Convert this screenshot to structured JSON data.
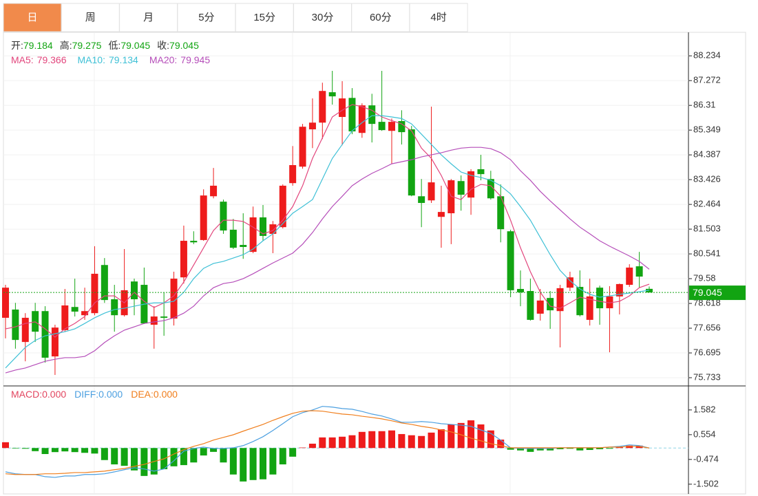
{
  "tabs": [
    "日",
    "周",
    "月",
    "5分",
    "15分",
    "30分",
    "60分",
    "4时"
  ],
  "active_tab": 0,
  "chart_data": [
    {
      "type": "candlestick",
      "labels": {
        "open": "开:",
        "high": "高:",
        "low": "低:",
        "close": "收:"
      },
      "up_color": "#ee1c1c",
      "down_color": "#12a412",
      "open": [
        78.06,
        78.38,
        77.12,
        78.32,
        78.32,
        76.56,
        77.58,
        78.48,
        78.16,
        78.24,
        80.11,
        78.78,
        78.16,
        79.47,
        79.34,
        77.79,
        78.11,
        78.03,
        79.63,
        81.05,
        81.08,
        82.78,
        82.57,
        81.48,
        80.89,
        80.62,
        81.96,
        81.32,
        81.58,
        83.29,
        83.93,
        85.38,
        85.64,
        86.82,
        85.86,
        86.6,
        85.24,
        86.31,
        85.67,
        85.32,
        85.7,
        85.38,
        82.78,
        82.62,
        81.98,
        82.12,
        83.37,
        82.73,
        83.83,
        83.45,
        82.78,
        81.42,
        79.18,
        79.1,
        78.22,
        78.83,
        78.32,
        79.23,
        79.26,
        77.98,
        79.23,
        78.43,
        78.89,
        79.34,
        80.06,
        79.184
      ],
      "high": [
        79.34,
        78.64,
        78.24,
        78.64,
        78.51,
        77.79,
        79.18,
        79.58,
        79.23,
        80.84,
        80.38,
        79.34,
        80.73,
        79.58,
        80.01,
        78.51,
        79.05,
        79.85,
        81.64,
        81.42,
        83.05,
        83.88,
        82.65,
        81.9,
        82.12,
        82.38,
        82.44,
        81.82,
        83.24,
        84.73,
        85.59,
        86.58,
        87.19,
        87.65,
        87.25,
        86.98,
        86.39,
        86.76,
        87.65,
        85.8,
        86.12,
        85.51,
        83.45,
        86.26,
        83.19,
        83.45,
        83.59,
        83.83,
        84.39,
        83.77,
        83.24,
        81.48,
        79.9,
        79.58,
        79.18,
        79.1,
        79.34,
        79.85,
        79.9,
        79.58,
        79.31,
        79.29,
        79.39,
        80.14,
        80.62,
        79.275
      ],
      "low": [
        77.26,
        76.86,
        76.37,
        77.12,
        76.32,
        75.84,
        77.52,
        78.11,
        77.98,
        78.16,
        78.64,
        77.52,
        78.11,
        78.16,
        77.82,
        76.86,
        77.36,
        77.76,
        79.39,
        80.92,
        81.05,
        82.7,
        81.32,
        80.73,
        80.35,
        80.57,
        81.05,
        80.57,
        81.53,
        83.19,
        83.85,
        84.65,
        85.0,
        86.34,
        84.76,
        85.19,
        85.05,
        84.87,
        85.32,
        84.04,
        84.79,
        82.78,
        81.58,
        82.52,
        80.78,
        80.92,
        82.22,
        82.06,
        83.4,
        82.65,
        80.99,
        78.86,
        78.51,
        77.95,
        77.95,
        77.63,
        76.91,
        79.1,
        78.11,
        77.76,
        77.79,
        76.72,
        78.19,
        79.26,
        79.23,
        79.045
      ],
      "close": [
        79.23,
        77.2,
        78.06,
        77.52,
        76.51,
        77.68,
        78.54,
        78.3,
        78.32,
        79.77,
        78.75,
        78.16,
        79.13,
        78.78,
        77.84,
        78.11,
        78.06,
        79.58,
        81.05,
        80.99,
        82.81,
        83.19,
        81.45,
        80.78,
        80.81,
        81.96,
        81.24,
        81.69,
        83.19,
        83.99,
        85.48,
        85.64,
        86.87,
        86.66,
        86.58,
        85.3,
        86.31,
        85.59,
        85.35,
        85.67,
        85.27,
        82.81,
        82.52,
        83.32,
        82.17,
        83.4,
        82.84,
        83.75,
        83.64,
        82.7,
        81.5,
        79.13,
        79.05,
        77.98,
        78.73,
        78.35,
        79.21,
        79.63,
        78.16,
        78.89,
        78.43,
        78.89,
        79.37,
        80.01,
        79.66,
        79.045
      ],
      "series": [
        {
          "name": "MA5:",
          "color": "#e2457c",
          "values": [
            77.63,
            77.71,
            77.84,
            77.9,
            77.63,
            77.31,
            77.63,
            77.84,
            78.11,
            78.64,
            78.91,
            78.91,
            78.64,
            79.05,
            78.7,
            78.46,
            78.64,
            78.91,
            79.45,
            80.11,
            80.78,
            81.45,
            81.85,
            81.85,
            81.8,
            81.58,
            81.32,
            81.45,
            81.85,
            82.38,
            83.19,
            84.25,
            85.05,
            85.86,
            86.12,
            86.34,
            86.26,
            86.12,
            85.86,
            85.72,
            85.59,
            85.32,
            84.65,
            84.25,
            83.59,
            82.78,
            82.65,
            83.05,
            83.24,
            83.19,
            82.78,
            81.85,
            80.78,
            79.85,
            79.05,
            78.51,
            78.43,
            78.64,
            78.86,
            78.78,
            78.7,
            78.64,
            78.7,
            78.91,
            79.23,
            79.366
          ]
        },
        {
          "name": "MA10:",
          "color": "#3ec0d6",
          "values": [
            76.11,
            76.51,
            76.91,
            77.18,
            77.36,
            77.44,
            77.52,
            77.63,
            77.84,
            78.06,
            78.24,
            78.38,
            78.43,
            78.51,
            78.59,
            78.64,
            78.64,
            78.7,
            79.05,
            79.58,
            79.98,
            80.17,
            80.25,
            80.38,
            80.51,
            80.73,
            81.05,
            81.32,
            81.72,
            82.12,
            82.38,
            82.65,
            83.45,
            84.25,
            84.79,
            85.32,
            85.64,
            85.91,
            85.91,
            85.86,
            85.8,
            85.59,
            85.19,
            84.79,
            84.39,
            84.04,
            83.72,
            83.59,
            83.51,
            83.4,
            83.19,
            82.87,
            82.38,
            81.85,
            81.18,
            80.51,
            79.9,
            79.5,
            79.18,
            78.97,
            78.86,
            78.91,
            78.97,
            79.02,
            79.07,
            79.134
          ]
        },
        {
          "name": "MA20:",
          "color": "#b54db9",
          "values": [
            75.92,
            76.03,
            76.11,
            76.24,
            76.37,
            76.45,
            76.51,
            76.51,
            76.56,
            76.78,
            77.1,
            77.36,
            77.58,
            77.71,
            77.84,
            77.9,
            77.95,
            78.06,
            78.24,
            78.51,
            78.91,
            79.23,
            79.39,
            79.45,
            79.58,
            79.77,
            79.98,
            80.19,
            80.38,
            80.57,
            80.92,
            81.37,
            81.9,
            82.38,
            82.78,
            83.19,
            83.45,
            83.67,
            83.85,
            84.04,
            84.12,
            84.2,
            84.31,
            84.39,
            84.47,
            84.57,
            84.65,
            84.68,
            84.68,
            84.63,
            84.47,
            84.2,
            83.77,
            83.4,
            82.97,
            82.6,
            82.25,
            81.9,
            81.58,
            81.32,
            81.05,
            80.84,
            80.65,
            80.46,
            80.25,
            79.945
          ]
        }
      ],
      "ylim": [
        75.44,
        89.12
      ],
      "yticks": [
        88.234,
        87.272,
        86.31,
        85.349,
        84.387,
        83.426,
        82.464,
        81.503,
        80.541,
        79.58,
        78.618,
        77.656,
        76.695,
        75.733
      ],
      "last_price_line": true,
      "grid": true
    },
    {
      "type": "macd",
      "histogram": {
        "name": "MACD:",
        "color": "#e2455f",
        "last_label": "0.000",
        "values": [
          0.24,
          -0.02,
          -0.03,
          -0.13,
          -0.25,
          -0.17,
          -0.14,
          -0.17,
          -0.2,
          -0.23,
          -0.5,
          -0.68,
          -0.74,
          -0.93,
          -1.16,
          -1.1,
          -0.88,
          -0.76,
          -0.71,
          -0.6,
          -0.31,
          -0.16,
          -0.6,
          -1.1,
          -1.39,
          -1.33,
          -1.3,
          -1.1,
          -0.68,
          -0.36,
          0.02,
          0.18,
          0.44,
          0.44,
          0.47,
          0.53,
          0.67,
          0.7,
          0.7,
          0.73,
          0.58,
          0.53,
          0.5,
          0.64,
          0.78,
          0.98,
          1.04,
          1.15,
          0.98,
          0.73,
          0.35,
          -0.07,
          -0.1,
          -0.16,
          -0.1,
          -0.1,
          -0.05,
          -0.03,
          -0.1,
          -0.08,
          -0.05,
          -0.03,
          0.04,
          0.1,
          0.1,
          0
        ]
      },
      "series": [
        {
          "name": "DIFF:",
          "color": "#4b9fe0",
          "last_label": "0.000",
          "values": [
            -0.99,
            -1.07,
            -1.1,
            -1.1,
            -1.19,
            -1.22,
            -1.16,
            -1.16,
            -1.1,
            -1.1,
            -1.07,
            -0.99,
            -0.9,
            -0.82,
            -0.87,
            -0.96,
            -0.87,
            -0.53,
            -0.13,
            -0.02,
            0.04,
            -0.02,
            -0.02,
            0.01,
            0.1,
            0.27,
            0.47,
            0.73,
            1.01,
            1.3,
            1.47,
            1.58,
            1.73,
            1.7,
            1.64,
            1.61,
            1.52,
            1.41,
            1.33,
            1.21,
            1.07,
            1.07,
            1.1,
            1.07,
            1.01,
            0.98,
            0.95,
            0.9,
            0.75,
            0.61,
            0.33,
            0.01,
            -0.02,
            -0.02,
            -0.02,
            -0.02,
            0.01,
            0.01,
            0.01,
            0.01,
            0.01,
            0.04,
            0.07,
            0.13,
            0.1,
            0
          ]
        },
        {
          "name": "DEA:",
          "color": "#f07e1c",
          "last_label": "0.000",
          "values": [
            -1.07,
            -1.1,
            -1.1,
            -1.1,
            -1.07,
            -1.07,
            -1.05,
            -1.02,
            -1.02,
            -0.99,
            -0.96,
            -0.9,
            -0.85,
            -0.76,
            -0.68,
            -0.56,
            -0.45,
            -0.25,
            -0.07,
            0.07,
            0.18,
            0.33,
            0.44,
            0.55,
            0.7,
            0.84,
            0.98,
            1.15,
            1.3,
            1.44,
            1.53,
            1.55,
            1.53,
            1.47,
            1.41,
            1.38,
            1.32,
            1.27,
            1.21,
            1.13,
            1.04,
            0.98,
            0.9,
            0.84,
            0.75,
            0.67,
            0.55,
            0.41,
            0.3,
            0.18,
            0.1,
            0.01,
            0.01,
            0.01,
            0.01,
            0.01,
            0.01,
            0.01,
            0.01,
            0.01,
            0.01,
            0.04,
            0.04,
            0.07,
            0.07,
            0
          ]
        }
      ],
      "ylim": [
        -1.85,
        2.55
      ],
      "yticks": [
        1.582,
        0.554,
        -0.474,
        -1.502
      ],
      "zero_line": true
    }
  ]
}
